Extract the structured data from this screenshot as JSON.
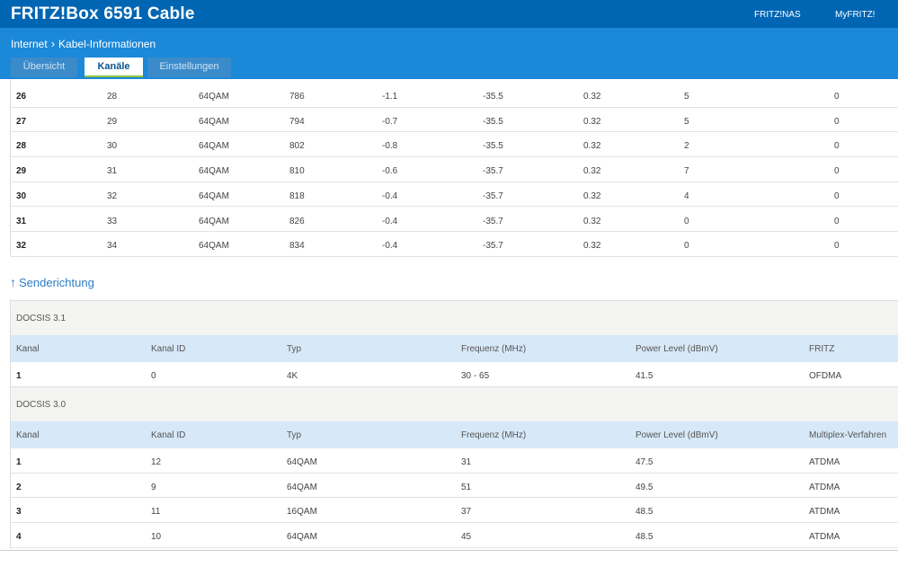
{
  "header": {
    "title": "FRITZ!Box 6591 Cable",
    "links": [
      "FRITZ!NAS",
      "MyFRITZ!"
    ]
  },
  "breadcrumb": {
    "parent": "Internet",
    "current": "Kabel-Informationen"
  },
  "tabs": [
    "Übersicht",
    "Kanäle",
    "Einstellungen"
  ],
  "downstream_rows": [
    [
      "26",
      "28",
      "64QAM",
      "786",
      "-1.1",
      "-35.5",
      "0.32",
      "5",
      "0"
    ],
    [
      "27",
      "29",
      "64QAM",
      "794",
      "-0.7",
      "-35.5",
      "0.32",
      "5",
      "0"
    ],
    [
      "28",
      "30",
      "64QAM",
      "802",
      "-0.8",
      "-35.5",
      "0.32",
      "2",
      "0"
    ],
    [
      "29",
      "31",
      "64QAM",
      "810",
      "-0.6",
      "-35.7",
      "0.32",
      "7",
      "0"
    ],
    [
      "30",
      "32",
      "64QAM",
      "818",
      "-0.4",
      "-35.7",
      "0.32",
      "4",
      "0"
    ],
    [
      "31",
      "33",
      "64QAM",
      "826",
      "-0.4",
      "-35.7",
      "0.32",
      "0",
      "0"
    ],
    [
      "32",
      "34",
      "64QAM",
      "834",
      "-0.4",
      "-35.7",
      "0.32",
      "0",
      "0"
    ]
  ],
  "senderichtung": {
    "heading": "Senderichtung",
    "docsis31": {
      "title": "DOCSIS 3.1",
      "headers": [
        "Kanal",
        "Kanal ID",
        "Typ",
        "Frequenz (MHz)",
        "Power Level (dBmV)",
        "FRITZ"
      ],
      "rows": [
        [
          "1",
          "0",
          "4K",
          "30 - 65",
          "41.5",
          "OFDMA"
        ]
      ]
    },
    "docsis30": {
      "title": "DOCSIS 3.0",
      "headers": [
        "Kanal",
        "Kanal ID",
        "Typ",
        "Frequenz (MHz)",
        "Power Level (dBmV)",
        "Multiplex-Verfahren"
      ],
      "rows": [
        [
          "1",
          "12",
          "64QAM",
          "31",
          "47.5",
          "ATDMA"
        ],
        [
          "2",
          "9",
          "64QAM",
          "51",
          "49.5",
          "ATDMA"
        ],
        [
          "3",
          "11",
          "16QAM",
          "37",
          "48.5",
          "ATDMA"
        ],
        [
          "4",
          "10",
          "64QAM",
          "45",
          "48.5",
          "ATDMA"
        ]
      ]
    }
  }
}
